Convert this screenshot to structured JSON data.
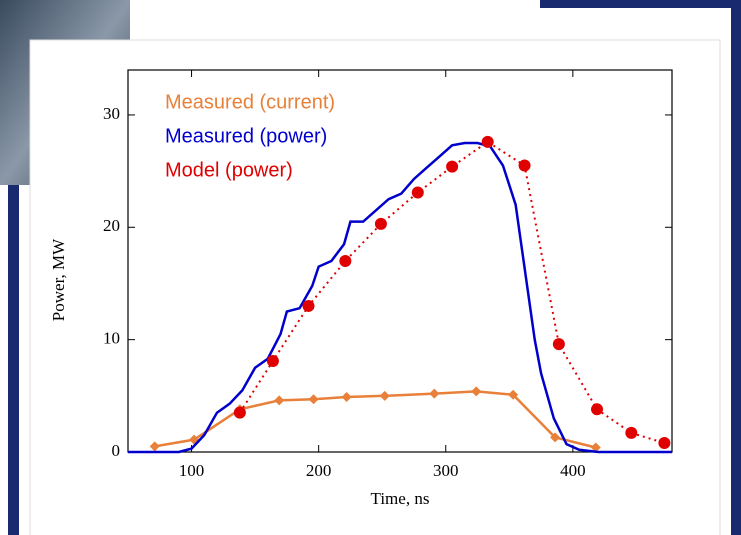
{
  "chart_data": {
    "type": "line",
    "xlabel": "Time, ns",
    "ylabel": "Power, MW",
    "xlim": [
      50,
      478
    ],
    "ylim": [
      0,
      34
    ],
    "xticks": [
      100,
      200,
      300,
      400
    ],
    "yticks": [
      0,
      10,
      20,
      30
    ],
    "series": [
      {
        "name": "Measured (current)",
        "color": "#e8803a",
        "marker": "diamond",
        "line_style": "solid",
        "x": [
          71,
          102,
          138,
          169,
          196,
          222,
          252,
          291,
          324,
          353,
          386,
          418
        ],
        "values": [
          0.5,
          1.1,
          3.8,
          4.6,
          4.7,
          4.9,
          5.0,
          5.2,
          5.4,
          5.1,
          1.3,
          0.4
        ]
      },
      {
        "name": "Measured (power)",
        "color": "#0000cc",
        "marker": "none",
        "line_style": "solid",
        "x": [
          50,
          90,
          100,
          110,
          120,
          130,
          140,
          150,
          160,
          170,
          175,
          185,
          195,
          200,
          210,
          220,
          225,
          235,
          245,
          255,
          265,
          275,
          285,
          295,
          305,
          315,
          325,
          335,
          345,
          355,
          360,
          370,
          375,
          385,
          395,
          405,
          420,
          478
        ],
        "values": [
          0,
          0,
          0.3,
          1.5,
          3.5,
          4.3,
          5.5,
          7.5,
          8.3,
          10.5,
          12.5,
          12.8,
          14.8,
          16.5,
          17,
          18.5,
          20.5,
          20.5,
          21.5,
          22.5,
          23,
          24.3,
          25.3,
          26.3,
          27.3,
          27.5,
          27.5,
          27.2,
          25.5,
          22,
          18,
          10,
          7,
          3,
          0.7,
          0.2,
          0,
          0
        ]
      },
      {
        "name": "Model (power)",
        "color": "#e00000",
        "marker": "circle",
        "line_style": "dotted",
        "x": [
          138,
          164,
          192,
          221,
          249,
          278,
          305,
          333,
          362,
          389,
          419,
          446,
          472
        ],
        "values": [
          3.5,
          8.1,
          13.0,
          17.0,
          20.3,
          23.1,
          25.4,
          27.6,
          25.5,
          9.6,
          3.8,
          1.7,
          0.8
        ]
      }
    ]
  }
}
